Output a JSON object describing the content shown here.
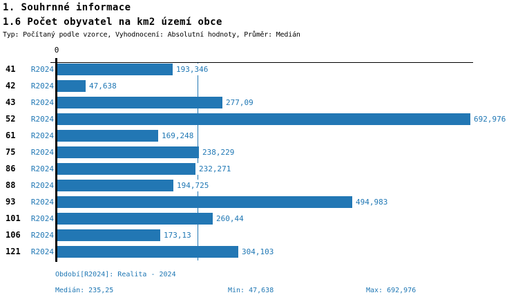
{
  "header": {
    "title": "1. Souhrnné informace",
    "subtitle": "1.6 Počet obyvatel na km2 území obce",
    "meta": "Typ: Počítaný podle vzorce, Vyhodnocení: Absolutní hodnoty, Průměr: Medián"
  },
  "chart_data": {
    "type": "bar",
    "orientation": "horizontal",
    "title": "1.6 Počet obyvatel na km2 území obce",
    "xlabel": "",
    "ylabel": "",
    "x_axis": {
      "min": 0,
      "zero_tick_label": "0",
      "approx_max": 698
    },
    "grid": false,
    "legend_position": "none",
    "median_value": 235.25,
    "categories": [
      "41",
      "42",
      "43",
      "52",
      "61",
      "75",
      "86",
      "88",
      "93",
      "101",
      "106",
      "121"
    ],
    "series": [
      {
        "name": "R2024",
        "values": [
          193.346,
          47.638,
          277.09,
          692.976,
          169.248,
          238.229,
          232.271,
          194.725,
          494.983,
          260.44,
          173.13,
          304.103
        ]
      }
    ],
    "rows": [
      {
        "id": "41",
        "period": "R2024",
        "value": 193.346,
        "label": "193,346"
      },
      {
        "id": "42",
        "period": "R2024",
        "value": 47.638,
        "label": "47,638"
      },
      {
        "id": "43",
        "period": "R2024",
        "value": 277.09,
        "label": "277,09"
      },
      {
        "id": "52",
        "period": "R2024",
        "value": 692.976,
        "label": "692,976"
      },
      {
        "id": "61",
        "period": "R2024",
        "value": 169.248,
        "label": "169,248"
      },
      {
        "id": "75",
        "period": "R2024",
        "value": 238.229,
        "label": "238,229"
      },
      {
        "id": "86",
        "period": "R2024",
        "value": 232.271,
        "label": "232,271"
      },
      {
        "id": "88",
        "period": "R2024",
        "value": 194.725,
        "label": "194,725"
      },
      {
        "id": "93",
        "period": "R2024",
        "value": 494.983,
        "label": "494,983"
      },
      {
        "id": "101",
        "period": "R2024",
        "value": 260.44,
        "label": "260,44"
      },
      {
        "id": "106",
        "period": "R2024",
        "value": 173.13,
        "label": "173,13"
      },
      {
        "id": "121",
        "period": "R2024",
        "value": 304.103,
        "label": "304,103"
      }
    ],
    "colors": {
      "bar": "#2277b4",
      "value_label": "#1f77b4",
      "median_line": "#2277b4",
      "axis": "#000000"
    }
  },
  "footer": {
    "period_line": "Období[R2024]: Realita - 2024",
    "median_label": "Medián: 235,25",
    "min_label": "Min: 47,638",
    "max_label": "Max: 692,976"
  }
}
